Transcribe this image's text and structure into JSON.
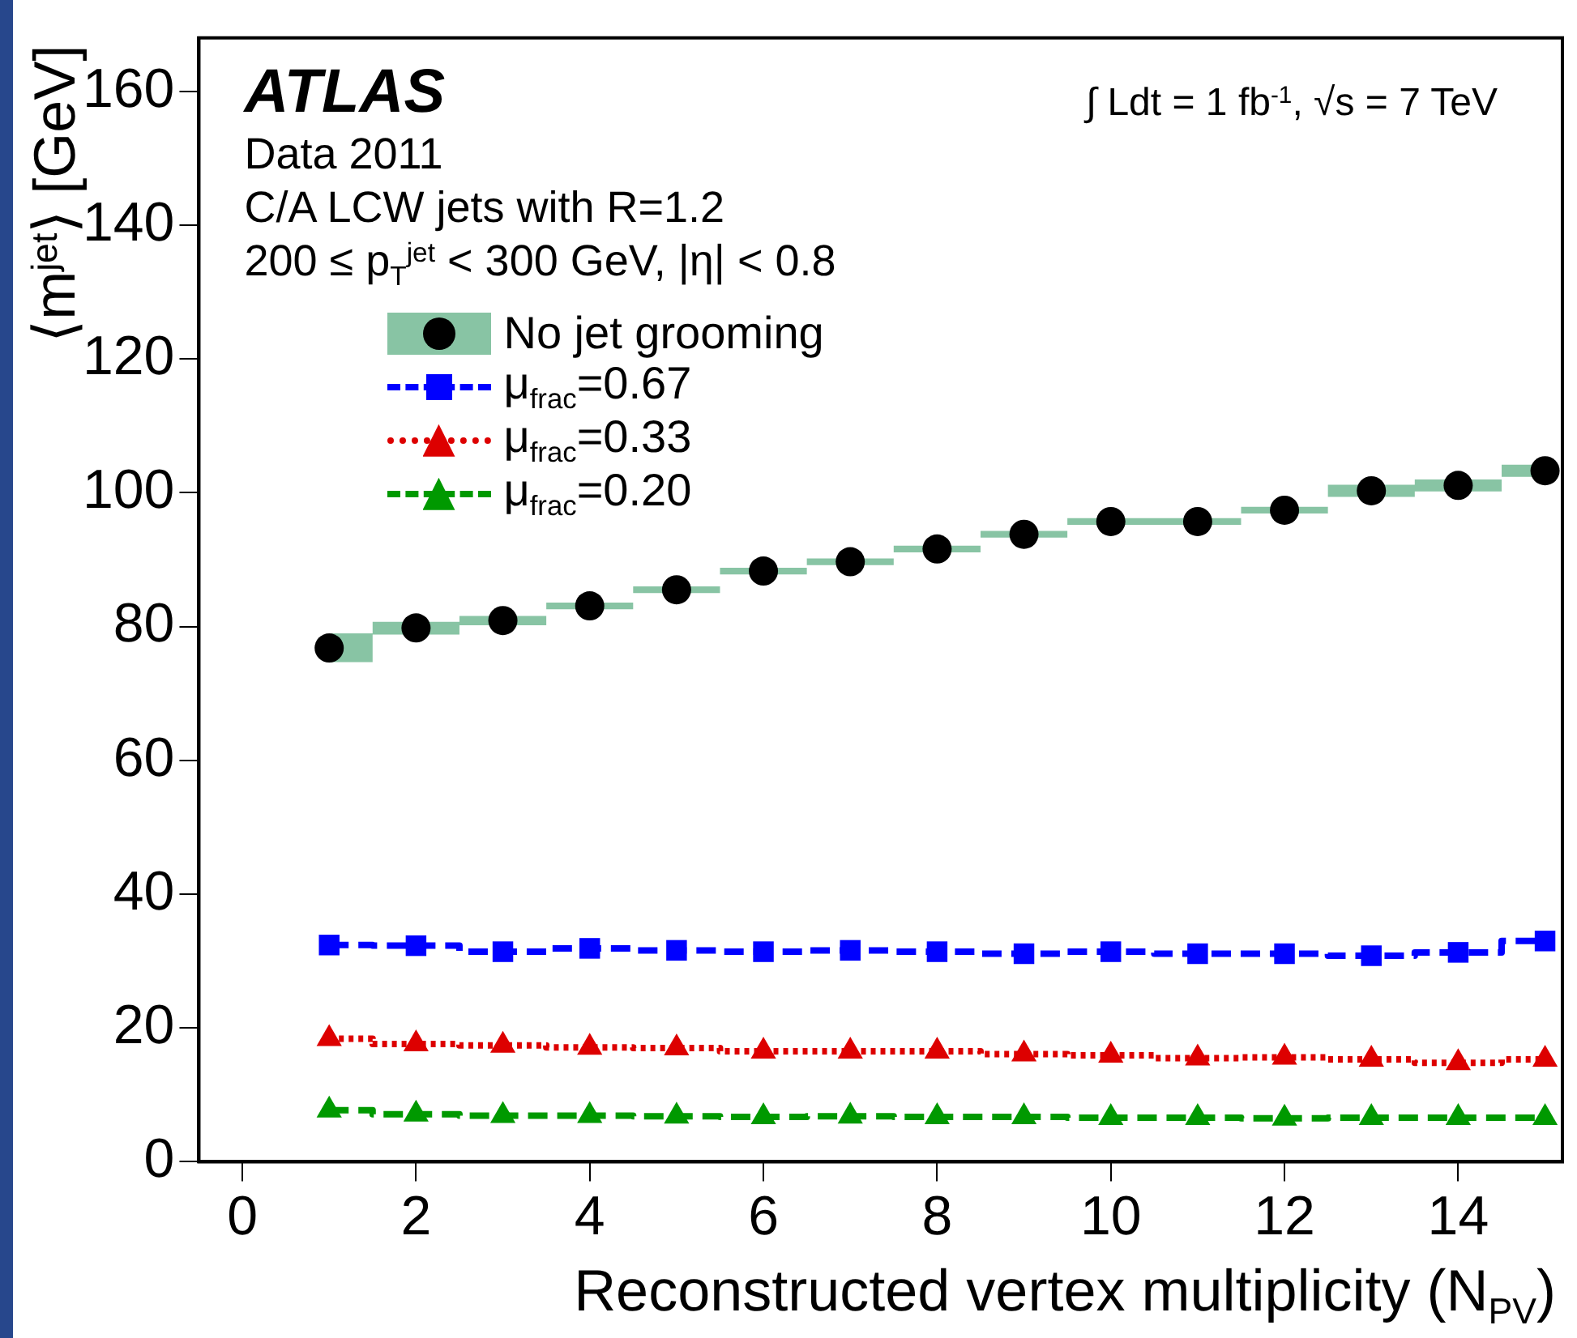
{
  "chart_data": {
    "type": "step",
    "xlabel": "Reconstructed vertex multiplicity (N$_{PV}$)",
    "ylabel": "⟨m$^{jet}$⟩ [GeV]",
    "x": [
      1,
      2,
      3,
      4,
      5,
      6,
      7,
      8,
      9,
      10,
      11,
      12,
      13,
      14,
      15
    ],
    "xlim": [
      -0.5,
      15.2
    ],
    "xticks": [
      0,
      2,
      4,
      6,
      8,
      10,
      12,
      14
    ],
    "ylim": [
      0,
      168
    ],
    "yticks": [
      0,
      20,
      40,
      60,
      80,
      100,
      120,
      140,
      160
    ],
    "grid": false,
    "legend": "top left",
    "annotations": [
      "ATLAS",
      "Data 2011",
      "C/A LCW jets with R=1.2",
      "200 ≤ p$_{T}$$^{jet}$ < 300 GeV, |η| < 0.8",
      "∫ Ldt = 1 fb$^{-1}$, √s = 7 TeV"
    ],
    "series": [
      {
        "name": "No jet grooming",
        "type": "scatter",
        "marker": "circle",
        "color": "#000000",
        "values": [
          76.8,
          79.8,
          80.9,
          83.1,
          85.5,
          88.3,
          89.7,
          91.6,
          93.8,
          95.7,
          95.7,
          97.4,
          100.3,
          101.1,
          103.3
        ],
        "lower": [
          74.7,
          78.8,
          80.2,
          82.6,
          85.0,
          87.8,
          89.2,
          91.1,
          93.3,
          95.2,
          95.2,
          96.9,
          99.4,
          100.2,
          102.4
        ],
        "upper": [
          79.0,
          80.7,
          81.6,
          83.6,
          86.0,
          88.8,
          90.2,
          92.1,
          94.3,
          96.2,
          96.2,
          97.9,
          101.2,
          102.0,
          104.2
        ]
      },
      {
        "name": "μ$_{frac}$=0.67",
        "marker": "square",
        "line_style": "dashed",
        "color": "#0000ff",
        "values": [
          32.4,
          32.3,
          31.4,
          31.9,
          31.6,
          31.4,
          31.6,
          31.4,
          31.1,
          31.4,
          31.1,
          31.1,
          30.8,
          31.3,
          33.0
        ]
      },
      {
        "name": "μ$_{frac}$=0.33",
        "marker": "triangle",
        "line_style": "dotted",
        "color": "#dd0000",
        "values": [
          18.4,
          17.6,
          17.4,
          17.1,
          17.0,
          16.5,
          16.5,
          16.5,
          16.1,
          15.9,
          15.5,
          15.6,
          15.3,
          14.8,
          15.3
        ]
      },
      {
        "name": "μ$_{frac}$=0.20",
        "marker": "triangle",
        "line_style": "dashed",
        "color": "#009900",
        "values": [
          7.7,
          7.1,
          6.9,
          6.9,
          6.8,
          6.7,
          6.8,
          6.7,
          6.7,
          6.6,
          6.6,
          6.5,
          6.6,
          6.6,
          6.6
        ]
      }
    ]
  }
}
